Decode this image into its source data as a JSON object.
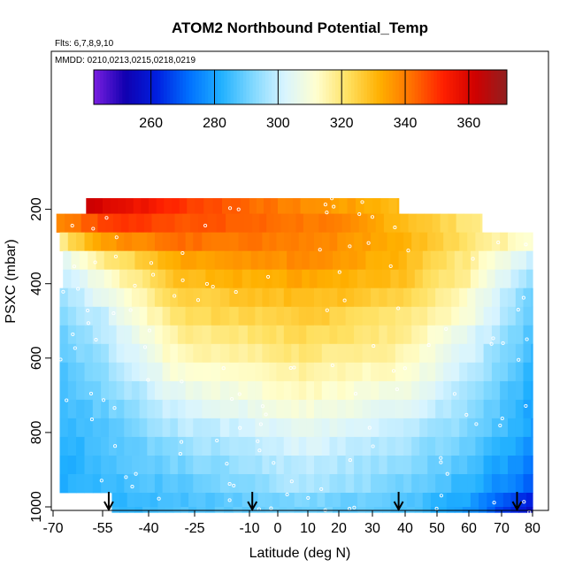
{
  "chart_data": {
    "type": "heatmap",
    "title": "ATOM2 Northbound Potential_Temp",
    "flights_label": "Flts: 6,7,8,9,10",
    "dates_label": "MMDD: 0210,0213,0215,0218,0219",
    "xlabel": "Latitude (deg N)",
    "ylabel": "PSXC (mbar)",
    "xlim": [
      -70,
      85
    ],
    "ylim": [
      1035,
      0
    ],
    "x_ticks": [
      -70,
      -55,
      -40,
      -25,
      -10,
      0,
      10,
      20,
      30,
      40,
      50,
      60,
      70,
      80
    ],
    "y_ticks": [
      200,
      400,
      600,
      800,
      1000
    ],
    "colorbar": {
      "range": [
        242,
        372
      ],
      "ticks": [
        260,
        280,
        300,
        320,
        340,
        360
      ],
      "colors": [
        "#7a1ee0",
        "#1000b0",
        "#0020e0",
        "#0070ff",
        "#20b0ff",
        "#80d8ff",
        "#d8f4ff",
        "#ffffd0",
        "#ffe060",
        "#ffb000",
        "#ff7000",
        "#ff2000",
        "#d00000",
        "#902020"
      ]
    },
    "arrow_latitudes": [
      -53,
      -9,
      38,
      75
    ],
    "rows": [
      {
        "p_top": 170,
        "p_bot": 212,
        "lat_min": -60,
        "lat_max": 38,
        "lat_anchor": [
          -60,
          -30,
          0,
          38
        ],
        "theta": [
          363,
          350,
          340,
          330
        ]
      },
      {
        "p_top": 212,
        "p_bot": 262,
        "lat_min": -69,
        "lat_max": 64,
        "lat_anchor": [
          -69,
          -50,
          -20,
          15,
          40,
          64
        ],
        "theta": [
          338,
          350,
          345,
          340,
          330,
          318
        ]
      },
      {
        "p_top": 262,
        "p_bot": 312,
        "lat_min": -68,
        "lat_max": 80,
        "lat_anchor": [
          -68,
          -55,
          -30,
          10,
          40,
          60,
          80
        ],
        "theta": [
          318,
          335,
          342,
          340,
          332,
          320,
          312
        ]
      },
      {
        "p_top": 312,
        "p_bot": 362,
        "lat_min": -67,
        "lat_max": 80,
        "lat_anchor": [
          -67,
          -55,
          -30,
          10,
          40,
          60,
          80
        ],
        "theta": [
          305,
          318,
          333,
          338,
          330,
          318,
          300
        ]
      },
      {
        "p_top": 362,
        "p_bot": 412,
        "lat_min": -67,
        "lat_max": 80,
        "lat_anchor": [
          -67,
          -55,
          -30,
          10,
          40,
          60,
          80
        ],
        "theta": [
          298,
          310,
          330,
          334,
          328,
          316,
          293
        ]
      },
      {
        "p_top": 412,
        "p_bot": 462,
        "lat_min": -68,
        "lat_max": 80,
        "lat_anchor": [
          -68,
          -55,
          -30,
          10,
          40,
          60,
          80
        ],
        "theta": [
          295,
          305,
          325,
          330,
          325,
          312,
          290
        ]
      },
      {
        "p_top": 462,
        "p_bot": 512,
        "lat_min": -68,
        "lat_max": 80,
        "lat_anchor": [
          -68,
          -55,
          -30,
          10,
          40,
          60,
          80
        ],
        "theta": [
          292,
          300,
          322,
          327,
          320,
          310,
          288
        ]
      },
      {
        "p_top": 512,
        "p_bot": 562,
        "lat_min": -68,
        "lat_max": 80,
        "lat_anchor": [
          -68,
          -55,
          -30,
          10,
          40,
          60,
          80
        ],
        "theta": [
          290,
          298,
          318,
          323,
          318,
          305,
          286
        ]
      },
      {
        "p_top": 562,
        "p_bot": 612,
        "lat_min": -68,
        "lat_max": 80,
        "lat_anchor": [
          -68,
          -55,
          -30,
          10,
          40,
          60,
          80
        ],
        "theta": [
          288,
          296,
          315,
          320,
          315,
          302,
          284
        ]
      },
      {
        "p_top": 612,
        "p_bot": 662,
        "lat_min": -68,
        "lat_max": 80,
        "lat_anchor": [
          -68,
          -55,
          -30,
          10,
          40,
          60,
          80
        ],
        "theta": [
          286,
          293,
          311,
          317,
          312,
          300,
          282
        ]
      },
      {
        "p_top": 662,
        "p_bot": 712,
        "lat_min": -68,
        "lat_max": 80,
        "lat_anchor": [
          -68,
          -55,
          -30,
          10,
          40,
          60,
          80
        ],
        "theta": [
          285,
          291,
          306,
          314,
          308,
          297,
          281
        ]
      },
      {
        "p_top": 712,
        "p_bot": 762,
        "lat_min": -68,
        "lat_max": 80,
        "lat_anchor": [
          -68,
          -55,
          -30,
          10,
          40,
          60,
          80
        ],
        "theta": [
          284,
          289,
          302,
          310,
          304,
          294,
          280
        ]
      },
      {
        "p_top": 762,
        "p_bot": 812,
        "lat_min": -68,
        "lat_max": 80,
        "lat_anchor": [
          -68,
          -55,
          -30,
          10,
          40,
          60,
          80
        ],
        "theta": [
          283,
          287,
          298,
          306,
          300,
          292,
          279
        ]
      },
      {
        "p_top": 812,
        "p_bot": 862,
        "lat_min": -68,
        "lat_max": 80,
        "lat_anchor": [
          -68,
          -55,
          -30,
          10,
          40,
          60,
          80
        ],
        "theta": [
          282,
          286,
          294,
          303,
          296,
          289,
          277
        ]
      },
      {
        "p_top": 862,
        "p_bot": 912,
        "lat_min": -68,
        "lat_max": 80,
        "lat_anchor": [
          -68,
          -55,
          -30,
          10,
          40,
          60,
          80
        ],
        "theta": [
          282,
          285,
          291,
          300,
          293,
          286,
          274
        ]
      },
      {
        "p_top": 912,
        "p_bot": 962,
        "lat_min": -68,
        "lat_max": 80,
        "lat_anchor": [
          -68,
          -55,
          -30,
          10,
          40,
          60,
          80
        ],
        "theta": [
          282,
          284,
          288,
          298,
          291,
          283,
          270
        ]
      },
      {
        "p_top": 962,
        "p_bot": 1000,
        "lat_min": -52,
        "lat_max": 80,
        "lat_anchor": [
          -52,
          -30,
          10,
          40,
          60,
          80
        ],
        "theta": [
          283,
          286,
          292,
          288,
          280,
          262
        ]
      },
      {
        "p_top": 1000,
        "p_bot": 1015,
        "lat_min": -52,
        "lat_max": 80,
        "lat_anchor": [
          -52,
          -30,
          10,
          40,
          60,
          80
        ],
        "theta": [
          283,
          286,
          291,
          287,
          278,
          255
        ]
      }
    ]
  }
}
